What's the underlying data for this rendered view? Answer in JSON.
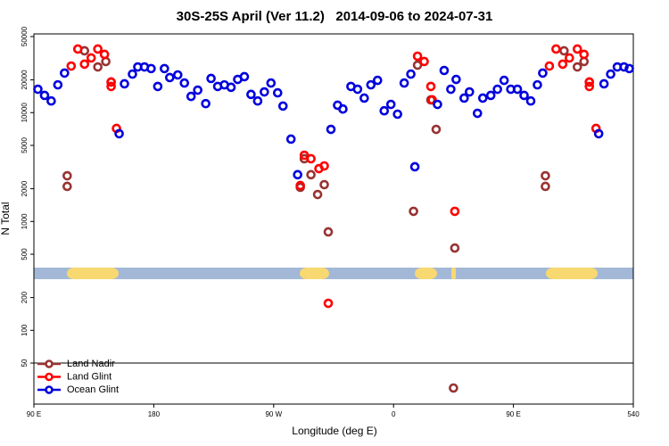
{
  "chart_data": {
    "type": "scatter",
    "title": "30S-25S April (Ver 11.2)   2014-09-06 to 2024-07-31",
    "x_label": "Longitude (deg E)",
    "y_label": "N Total",
    "log_y": true,
    "legend": "lower left",
    "xlim": [
      90,
      540
    ],
    "ylim": [
      21,
      52900
    ],
    "xticks": [
      {
        "value": 90,
        "label": "90 E"
      },
      180,
      {
        "value": 270,
        "label": "90 W"
      },
      {
        "value": 360,
        "label": "0"
      },
      {
        "value": 450,
        "label": "90 E"
      },
      540
    ],
    "yticks": [
      50,
      100,
      200,
      500,
      1000,
      2000,
      5000,
      10000,
      20000,
      50000
    ],
    "series": [
      {
        "name": "Land Nadir",
        "color": "#993333",
        "x": [
          115,
          115,
          128,
          138,
          144,
          148,
          290,
          293,
          298,
          303,
          308,
          311,
          375,
          378,
          388,
          392,
          406,
          405,
          474,
          474,
          488,
          498,
          503,
          507
        ],
        "values": [
          2630,
          2100,
          37000,
          26300,
          29500,
          19100,
          2060,
          3770,
          2690,
          1770,
          2180,
          802,
          1240,
          27300,
          13100,
          7020,
          570,
          29.5,
          2630,
          2100,
          37000,
          26300,
          29500,
          19100
        ]
      },
      {
        "name": "Land Glint",
        "color": "#ff0000",
        "x": [
          118,
          123,
          128,
          133,
          138,
          143,
          148,
          148,
          152,
          290,
          293,
          298,
          304,
          308,
          311,
          378,
          383,
          388,
          389,
          406,
          477,
          482,
          487,
          492,
          498,
          503,
          507,
          507,
          512
        ],
        "values": [
          26800,
          38400,
          27900,
          31800,
          38400,
          34300,
          17400,
          19100,
          7160,
          2140,
          4060,
          3770,
          3060,
          3240,
          177,
          33000,
          29500,
          17400,
          13100,
          1240,
          26800,
          38400,
          27900,
          31800,
          38400,
          34300,
          19100,
          17400,
          7160
        ]
      },
      {
        "name": "Ocean Glint",
        "color": "#0000dd",
        "x": [
          93,
          98,
          103,
          108,
          113,
          154,
          158,
          164,
          168,
          173,
          178,
          183,
          188,
          192,
          198,
          203,
          208,
          213,
          219,
          223,
          228,
          233,
          238,
          243,
          248,
          253,
          258,
          263,
          268,
          273,
          277,
          283,
          288,
          313,
          318,
          322,
          328,
          333,
          338,
          343,
          348,
          353,
          358,
          363,
          368,
          373,
          376,
          393,
          398,
          403,
          407,
          413,
          417,
          423,
          427,
          433,
          438,
          443,
          448,
          453,
          458,
          463,
          468,
          472,
          514,
          518,
          523,
          528,
          533,
          537
        ],
        "values": [
          16400,
          14400,
          12800,
          18000,
          23100,
          6400,
          18400,
          22600,
          26300,
          26300,
          25400,
          17400,
          25400,
          21000,
          22200,
          18700,
          14100,
          16100,
          12100,
          20600,
          17400,
          18000,
          17100,
          20200,
          21400,
          14700,
          12800,
          15500,
          18700,
          15200,
          11500,
          5710,
          2690,
          7020,
          11700,
          10800,
          17400,
          16400,
          13600,
          18000,
          19800,
          10400,
          11900,
          9680,
          18700,
          22600,
          3180,
          11900,
          24400,
          16400,
          20200,
          13600,
          15500,
          9860,
          13600,
          14400,
          16400,
          19800,
          16400,
          16400,
          14400,
          12800,
          18000,
          23100,
          6400,
          18400,
          22600,
          26300,
          26300,
          25400
        ]
      }
    ]
  }
}
